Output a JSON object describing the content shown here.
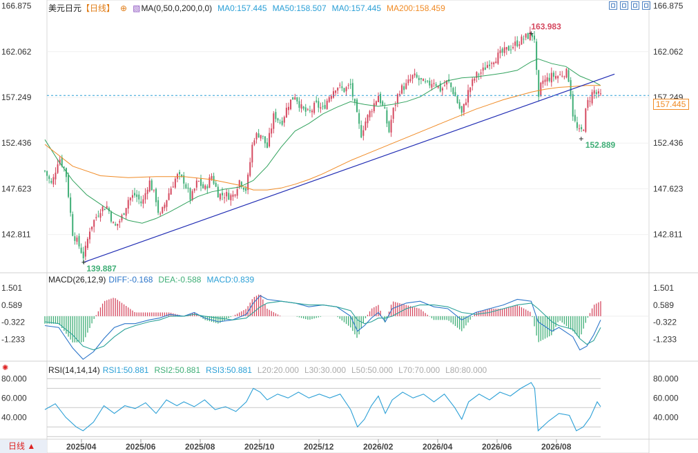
{
  "header": {
    "symbol": "美元日元",
    "period": "【日线】",
    "ma_indicator": "MA(0,50,0,200,0,0)",
    "ma0_a": "MA0:157.445",
    "ma50": "MA50:158.507",
    "ma0_b": "MA0:157.445",
    "ma200": "MA200:158.459",
    "plus_icon": "plus-circle-icon",
    "ma_icon": "indicator-icon"
  },
  "macd_header": {
    "title": "MACD(26,12,9)",
    "diff": "DIFF:-0.168",
    "dea": "DEA:-0.588",
    "macd": "MACD:0.839"
  },
  "rsi_header": {
    "title": "RSI(14,14,14)",
    "rsi1": "RSI1:50.881",
    "rsi2": "RSI2:50.881",
    "rsi3": "RSI3:50.881",
    "l20": "L20:20.000",
    "l30": "L30:30.000",
    "l50": "L50:50.000",
    "l70": "L70:70.000",
    "l80": "L80:80.000"
  },
  "toolbar": {
    "icons": [
      "crosshair-icon",
      "zoom-icon",
      "layout-icon",
      "close-icon"
    ]
  },
  "period_button": "日线 ▲",
  "current_price": "157.445",
  "colors": {
    "up": "#d5485f",
    "down": "#3fae76",
    "ma50": "#31a25d",
    "ma200": "#f08a24",
    "trendline": "#1f2bb3",
    "diff": "#2a74c9",
    "dea": "#2aa198",
    "rsi": "#2a9fd6"
  },
  "chart_data": [
    {
      "type": "candlestick",
      "title": "美元日元",
      "yticks": [
        "166.875",
        "162.062",
        "157.249",
        "152.436",
        "147.623",
        "142.811"
      ],
      "ylim": [
        139.0,
        167.5
      ],
      "xticks": [
        "2025/04",
        "2025/06",
        "2025/08",
        "2025/10",
        "2025/12",
        "2026/02",
        "2026/04",
        "2026/06",
        "2026/08"
      ],
      "annotations": [
        {
          "label": "163.983",
          "kind": "high"
        },
        {
          "label": "139.887",
          "kind": "low"
        },
        {
          "label": "152.889",
          "kind": "low"
        }
      ],
      "close_path": [
        [
          0,
          149.5
        ],
        [
          10,
          148.0
        ],
        [
          20,
          151.0
        ],
        [
          30,
          149.5
        ],
        [
          40,
          143.0
        ],
        [
          50,
          141.5
        ],
        [
          56,
          140.4
        ],
        [
          65,
          143.5
        ],
        [
          80,
          145.5
        ],
        [
          90,
          145.8
        ],
        [
          100,
          143.5
        ],
        [
          110,
          144.5
        ],
        [
          120,
          146.5
        ],
        [
          130,
          147.0
        ],
        [
          140,
          146.0
        ],
        [
          150,
          148.5
        ],
        [
          160,
          146.5
        ],
        [
          165,
          144.5
        ],
        [
          175,
          146.5
        ],
        [
          180,
          147.5
        ],
        [
          190,
          149.0
        ],
        [
          200,
          148.5
        ],
        [
          210,
          146.5
        ],
        [
          220,
          148.5
        ],
        [
          230,
          147.5
        ],
        [
          240,
          149.0
        ],
        [
          250,
          147.0
        ],
        [
          260,
          147.0
        ],
        [
          270,
          146.8
        ],
        [
          280,
          148.5
        ],
        [
          290,
          147.5
        ],
        [
          300,
          153.0
        ],
        [
          310,
          153.5
        ],
        [
          320,
          152.0
        ],
        [
          330,
          155.5
        ],
        [
          340,
          154.5
        ],
        [
          350,
          156.5
        ],
        [
          360,
          157.5
        ],
        [
          370,
          156.0
        ],
        [
          380,
          155.5
        ],
        [
          390,
          156.5
        ],
        [
          400,
          156.0
        ],
        [
          410,
          157.5
        ],
        [
          420,
          158.5
        ],
        [
          430,
          158.0
        ],
        [
          440,
          158.5
        ],
        [
          450,
          155.0
        ],
        [
          455,
          153.3
        ],
        [
          460,
          154.5
        ],
        [
          470,
          156.0
        ],
        [
          480,
          157.5
        ],
        [
          490,
          155.5
        ],
        [
          495,
          153.5
        ],
        [
          500,
          155.5
        ],
        [
          510,
          158.0
        ],
        [
          520,
          158.5
        ],
        [
          530,
          159.5
        ],
        [
          540,
          159.0
        ],
        [
          550,
          158.5
        ],
        [
          560,
          159.0
        ],
        [
          570,
          158.0
        ],
        [
          580,
          159.0
        ],
        [
          590,
          157.5
        ],
        [
          600,
          155.5
        ],
        [
          610,
          158.0
        ],
        [
          620,
          159.5
        ],
        [
          630,
          160.0
        ],
        [
          640,
          161.0
        ],
        [
          650,
          161.5
        ],
        [
          660,
          162.0
        ],
        [
          670,
          162.5
        ],
        [
          680,
          163.0
        ],
        [
          690,
          163.5
        ],
        [
          700,
          163.9
        ],
        [
          705,
          163.5
        ],
        [
          710,
          156.5
        ],
        [
          715,
          159.0
        ],
        [
          720,
          159.0
        ],
        [
          730,
          159.5
        ],
        [
          740,
          159.5
        ],
        [
          750,
          160.0
        ],
        [
          755,
          159.0
        ],
        [
          760,
          155.5
        ],
        [
          765,
          154.0
        ],
        [
          770,
          153.5
        ],
        [
          775,
          154.0
        ],
        [
          780,
          156.5
        ],
        [
          790,
          158.0
        ],
        [
          795,
          157.5
        ],
        [
          800,
          157.4
        ]
      ],
      "ma50_path": [
        [
          0,
          152.8
        ],
        [
          20,
          150.5
        ],
        [
          40,
          148.5
        ],
        [
          60,
          147.0
        ],
        [
          80,
          146.0
        ],
        [
          100,
          145.0
        ],
        [
          120,
          144.3
        ],
        [
          140,
          144.0
        ],
        [
          160,
          144.5
        ],
        [
          180,
          145.2
        ],
        [
          200,
          146.0
        ],
        [
          220,
          146.8
        ],
        [
          240,
          147.3
        ],
        [
          260,
          147.6
        ],
        [
          280,
          147.8
        ],
        [
          300,
          148.5
        ],
        [
          320,
          150.0
        ],
        [
          340,
          152.0
        ],
        [
          360,
          153.7
        ],
        [
          380,
          154.5
        ],
        [
          400,
          155.5
        ],
        [
          420,
          156.2
        ],
        [
          440,
          156.8
        ],
        [
          460,
          156.5
        ],
        [
          480,
          156.3
        ],
        [
          500,
          156.5
        ],
        [
          520,
          156.8
        ],
        [
          540,
          157.3
        ],
        [
          560,
          158.2
        ],
        [
          580,
          159.0
        ],
        [
          600,
          159.3
        ],
        [
          620,
          159.4
        ],
        [
          640,
          159.6
        ],
        [
          660,
          159.8
        ],
        [
          680,
          160.1
        ],
        [
          700,
          161.0
        ],
        [
          710,
          161.3
        ],
        [
          730,
          160.8
        ],
        [
          750,
          160.5
        ],
        [
          770,
          159.5
        ],
        [
          790,
          158.9
        ],
        [
          800,
          158.5
        ]
      ],
      "ma200_path": [
        [
          0,
          152.3
        ],
        [
          40,
          150.0
        ],
        [
          80,
          149.0
        ],
        [
          120,
          148.8
        ],
        [
          160,
          148.9
        ],
        [
          200,
          148.9
        ],
        [
          240,
          148.6
        ],
        [
          280,
          148.0
        ],
        [
          300,
          147.5
        ],
        [
          320,
          147.5
        ],
        [
          340,
          147.7
        ],
        [
          360,
          148.1
        ],
        [
          380,
          148.6
        ],
        [
          400,
          149.2
        ],
        [
          420,
          149.9
        ],
        [
          440,
          150.6
        ],
        [
          460,
          151.2
        ],
        [
          480,
          151.8
        ],
        [
          500,
          152.4
        ],
        [
          520,
          153.0
        ],
        [
          540,
          153.6
        ],
        [
          560,
          154.2
        ],
        [
          580,
          154.8
        ],
        [
          600,
          155.4
        ],
        [
          620,
          156.0
        ],
        [
          640,
          156.5
        ],
        [
          660,
          157.0
        ],
        [
          680,
          157.4
        ],
        [
          700,
          157.8
        ],
        [
          720,
          158.1
        ],
        [
          740,
          158.3
        ],
        [
          760,
          158.4
        ],
        [
          780,
          158.5
        ],
        [
          800,
          158.5
        ]
      ],
      "trendline": [
        [
          56,
          139.887
        ],
        [
          820,
          159.7
        ]
      ]
    },
    {
      "type": "macd",
      "title": "MACD(26,12,9)",
      "yticks": [
        "1.501",
        "0.589",
        "-0.322",
        "-1.233"
      ],
      "ylim": [
        -2.4,
        1.95
      ],
      "diff_path": [
        [
          0,
          -0.5
        ],
        [
          20,
          -0.6
        ],
        [
          40,
          -1.7
        ],
        [
          55,
          -2.3
        ],
        [
          70,
          -1.9
        ],
        [
          85,
          -1.2
        ],
        [
          100,
          -0.6
        ],
        [
          115,
          -0.4
        ],
        [
          130,
          -0.4
        ],
        [
          150,
          -0.2
        ],
        [
          165,
          -0.1
        ],
        [
          180,
          0.1
        ],
        [
          200,
          0.0
        ],
        [
          215,
          0.2
        ],
        [
          230,
          -0.1
        ],
        [
          250,
          -0.3
        ],
        [
          270,
          -0.2
        ],
        [
          290,
          0.1
        ],
        [
          300,
          0.7
        ],
        [
          310,
          1.1
        ],
        [
          320,
          0.9
        ],
        [
          340,
          0.8
        ],
        [
          360,
          0.7
        ],
        [
          380,
          0.5
        ],
        [
          400,
          0.6
        ],
        [
          420,
          0.5
        ],
        [
          440,
          0.0
        ],
        [
          450,
          -0.8
        ],
        [
          460,
          -0.5
        ],
        [
          470,
          -0.1
        ],
        [
          480,
          0.2
        ],
        [
          490,
          -0.3
        ],
        [
          500,
          0.4
        ],
        [
          520,
          0.7
        ],
        [
          540,
          0.8
        ],
        [
          560,
          0.5
        ],
        [
          580,
          0.4
        ],
        [
          600,
          -0.2
        ],
        [
          620,
          0.2
        ],
        [
          640,
          0.4
        ],
        [
          660,
          0.6
        ],
        [
          680,
          0.9
        ],
        [
          700,
          0.8
        ],
        [
          710,
          -0.3
        ],
        [
          730,
          -0.8
        ],
        [
          740,
          -0.6
        ],
        [
          760,
          -1.1
        ],
        [
          770,
          -1.8
        ],
        [
          780,
          -1.6
        ],
        [
          790,
          -1.0
        ],
        [
          800,
          -0.2
        ]
      ],
      "dea_path": [
        [
          0,
          -0.3
        ],
        [
          20,
          -0.4
        ],
        [
          40,
          -1.0
        ],
        [
          55,
          -1.6
        ],
        [
          70,
          -1.8
        ],
        [
          85,
          -1.6
        ],
        [
          100,
          -1.1
        ],
        [
          115,
          -0.7
        ],
        [
          130,
          -0.5
        ],
        [
          150,
          -0.3
        ],
        [
          165,
          -0.2
        ],
        [
          180,
          0.0
        ],
        [
          200,
          0.0
        ],
        [
          215,
          0.1
        ],
        [
          230,
          0.0
        ],
        [
          250,
          -0.1
        ],
        [
          270,
          -0.2
        ],
        [
          290,
          -0.1
        ],
        [
          300,
          0.2
        ],
        [
          310,
          0.5
        ],
        [
          320,
          0.7
        ],
        [
          340,
          0.8
        ],
        [
          360,
          0.7
        ],
        [
          380,
          0.6
        ],
        [
          400,
          0.6
        ],
        [
          420,
          0.5
        ],
        [
          440,
          0.3
        ],
        [
          450,
          -0.2
        ],
        [
          460,
          -0.4
        ],
        [
          470,
          -0.3
        ],
        [
          480,
          -0.1
        ],
        [
          490,
          -0.1
        ],
        [
          500,
          0.0
        ],
        [
          520,
          0.4
        ],
        [
          540,
          0.6
        ],
        [
          560,
          0.6
        ],
        [
          580,
          0.5
        ],
        [
          600,
          0.2
        ],
        [
          620,
          0.1
        ],
        [
          640,
          0.2
        ],
        [
          660,
          0.4
        ],
        [
          680,
          0.6
        ],
        [
          700,
          0.7
        ],
        [
          710,
          0.4
        ],
        [
          730,
          -0.3
        ],
        [
          740,
          -0.5
        ],
        [
          760,
          -0.7
        ],
        [
          770,
          -1.2
        ],
        [
          780,
          -1.5
        ],
        [
          790,
          -1.3
        ],
        [
          800,
          -0.6
        ]
      ]
    },
    {
      "type": "line",
      "title": "RSI(14,14,14)",
      "yticks": [
        "80.000",
        "60.000",
        "40.000"
      ],
      "ylim": [
        18,
        86
      ],
      "reference_lines": [
        20,
        30,
        50,
        70,
        80
      ],
      "rsi_path": [
        [
          0,
          48
        ],
        [
          15,
          54
        ],
        [
          30,
          40
        ],
        [
          45,
          30
        ],
        [
          55,
          26
        ],
        [
          70,
          35
        ],
        [
          85,
          52
        ],
        [
          100,
          44
        ],
        [
          115,
          52
        ],
        [
          130,
          49
        ],
        [
          145,
          55
        ],
        [
          160,
          44
        ],
        [
          175,
          58
        ],
        [
          190,
          52
        ],
        [
          200,
          56
        ],
        [
          215,
          51
        ],
        [
          230,
          58
        ],
        [
          245,
          48
        ],
        [
          260,
          51
        ],
        [
          275,
          46
        ],
        [
          290,
          56
        ],
        [
          300,
          70
        ],
        [
          310,
          66
        ],
        [
          320,
          58
        ],
        [
          335,
          64
        ],
        [
          350,
          60
        ],
        [
          365,
          66
        ],
        [
          380,
          60
        ],
        [
          395,
          64
        ],
        [
          410,
          60
        ],
        [
          425,
          64
        ],
        [
          440,
          48
        ],
        [
          450,
          30
        ],
        [
          460,
          38
        ],
        [
          470,
          52
        ],
        [
          480,
          62
        ],
        [
          490,
          44
        ],
        [
          500,
          58
        ],
        [
          515,
          66
        ],
        [
          530,
          60
        ],
        [
          545,
          64
        ],
        [
          560,
          56
        ],
        [
          575,
          64
        ],
        [
          590,
          50
        ],
        [
          600,
          38
        ],
        [
          610,
          56
        ],
        [
          625,
          64
        ],
        [
          640,
          58
        ],
        [
          655,
          66
        ],
        [
          670,
          62
        ],
        [
          685,
          70
        ],
        [
          700,
          76
        ],
        [
          705,
          70
        ],
        [
          710,
          26
        ],
        [
          725,
          36
        ],
        [
          740,
          44
        ],
        [
          755,
          42
        ],
        [
          765,
          26
        ],
        [
          775,
          30
        ],
        [
          785,
          40
        ],
        [
          795,
          56
        ],
        [
          800,
          51
        ]
      ]
    }
  ]
}
